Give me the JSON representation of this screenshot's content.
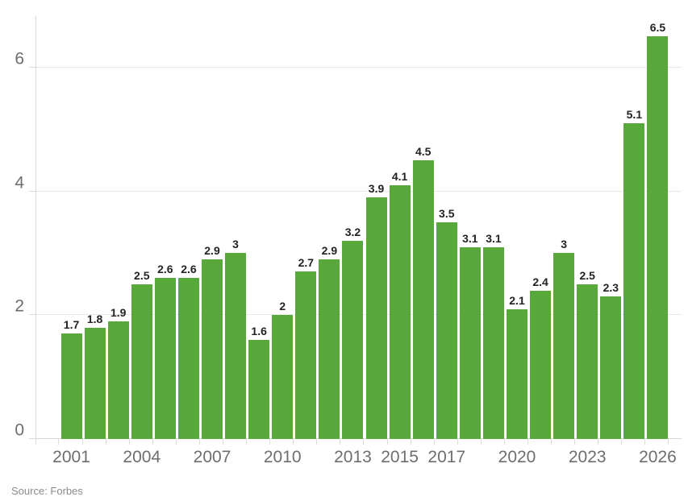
{
  "chart_data": {
    "type": "bar",
    "title": "",
    "xlabel": "",
    "ylabel": "",
    "categories": [
      "2001",
      "2002",
      "2003",
      "2004",
      "2005",
      "2006",
      "2007",
      "2008",
      "2009",
      "2010",
      "2011",
      "2012",
      "2013",
      "2014",
      "2015",
      "2016",
      "2017",
      "2018",
      "2019",
      "2020",
      "2021",
      "2022",
      "2023",
      "2024",
      "2025",
      "2026"
    ],
    "values": [
      1.7,
      1.8,
      1.9,
      2.5,
      2.6,
      2.6,
      2.9,
      3,
      1.6,
      2,
      2.7,
      2.9,
      3.2,
      3.9,
      4.1,
      4.5,
      3.5,
      3.1,
      3.1,
      2.1,
      2.4,
      3,
      2.5,
      2.3,
      5.1,
      6.5
    ],
    "bar_labels": [
      "1.7",
      "1.8",
      "1.9",
      "2.5",
      "2.6",
      "2.6",
      "2.9",
      "3",
      "1.6",
      "2",
      "2.7",
      "2.9",
      "3.2",
      "3.9",
      "4.1",
      "4.5",
      "3.5",
      "3.1",
      "3.1",
      "2.1",
      "2.4",
      "3",
      "2.5",
      "2.3",
      "5.1",
      "6.5"
    ],
    "x_tick_labels": [
      "2001",
      "2004",
      "2007",
      "2010",
      "2013",
      "2015",
      "2017",
      "2020",
      "2023",
      "2026"
    ],
    "x_tick_indices": [
      0,
      3,
      6,
      9,
      12,
      14,
      16,
      19,
      22,
      25
    ],
    "y_ticks": [
      0,
      2,
      4,
      6
    ],
    "y_tick_labels": [
      "0",
      "2",
      "4",
      "6"
    ],
    "ylim": [
      0,
      6.83
    ],
    "grid": "horizontal",
    "legend": "none",
    "colors": {
      "bar": "#59a83c",
      "value_label": "#232323",
      "axis_text": "#6e6e6e",
      "gridline": "#e9e9e9",
      "axis_line": "#d8d8d8",
      "tick": "#dcdcdc",
      "background": "#ffffff",
      "source_text": "#8b8b8b"
    }
  },
  "source": {
    "text": "Source: Forbes"
  }
}
